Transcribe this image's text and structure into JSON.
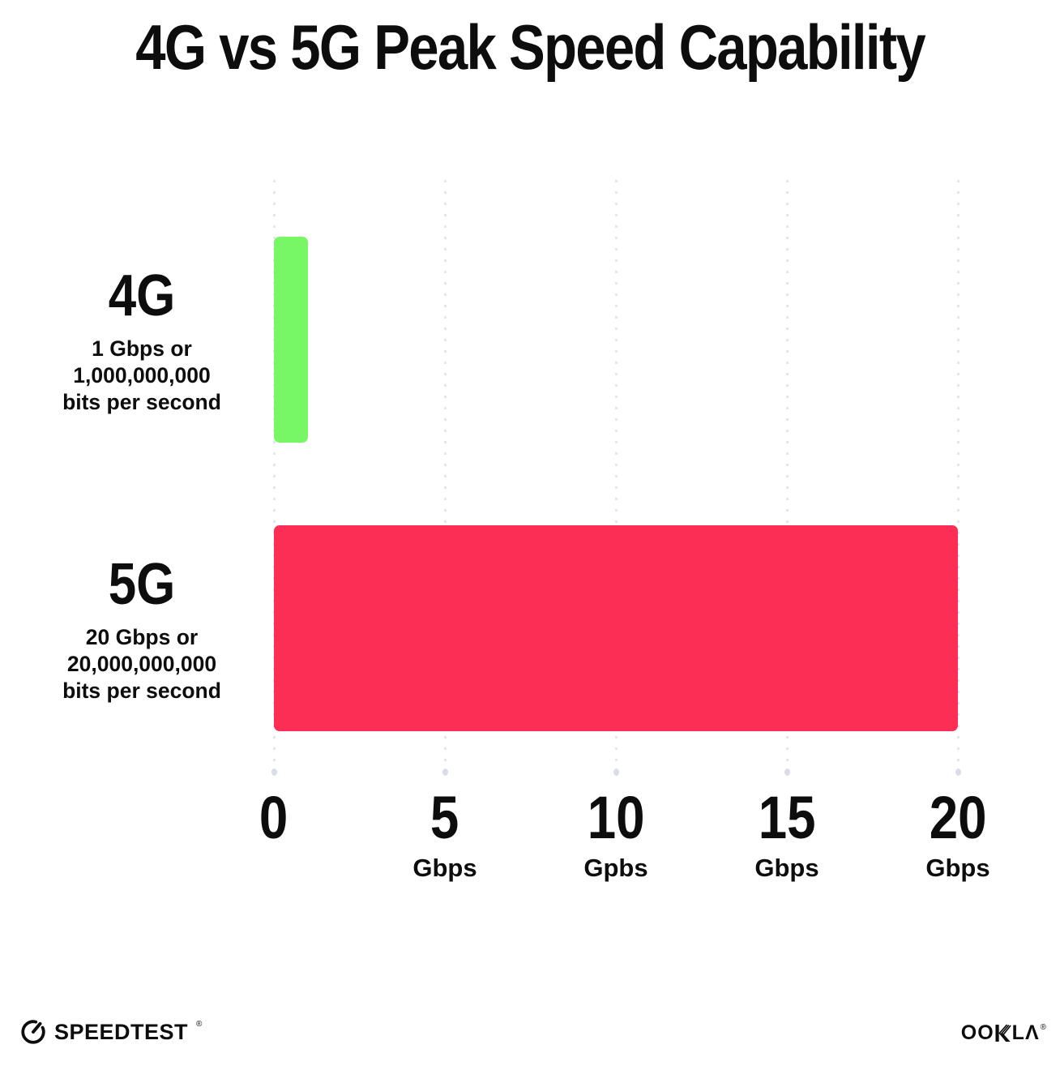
{
  "title": "4G vs 5G Peak Speed Capability",
  "chart_data": {
    "type": "bar",
    "orientation": "horizontal",
    "title": "4G vs 5G Peak Speed Capability",
    "xlim": [
      0,
      20
    ],
    "x_unit": "Gbps",
    "grid": "dotted vertical gridlines at 0, 5, 10, 15, 20",
    "legend": "none",
    "categories": [
      "4G",
      "5G"
    ],
    "values": [
      1,
      20
    ],
    "rows": [
      {
        "category": "4G",
        "value_gbps": 1,
        "bar_color": "#77F765",
        "description_lines": [
          "1 Gbps or",
          "1,000,000,000",
          "bits per second"
        ]
      },
      {
        "category": "5G",
        "value_gbps": 20,
        "bar_color": "#FD2E55",
        "description_lines": [
          "20 Gbps or",
          "20,000,000,000",
          "bits per second"
        ]
      }
    ],
    "x_ticks": [
      {
        "label": "0",
        "unit": ""
      },
      {
        "label": "5",
        "unit": "Gbps"
      },
      {
        "label": "10",
        "unit": "Gpbs"
      },
      {
        "label": "15",
        "unit": "Gbps"
      },
      {
        "label": "20",
        "unit": "Gbps"
      }
    ]
  },
  "footer": {
    "speedtest_label": "SPEEDTEST",
    "speedtest_trademark": "®",
    "ookla_oo": "OO",
    "ookla_l": "L",
    "ookla_a": "Λ",
    "ookla_trademark": "®"
  },
  "colors": {
    "background": "#FFFFFF",
    "text": "#0D0D0D",
    "grid_dot": "#E3E5EF",
    "grid_end_dot": "#D9DDE9",
    "bar_4g": "#77F765",
    "bar_5g": "#FD2E55"
  }
}
